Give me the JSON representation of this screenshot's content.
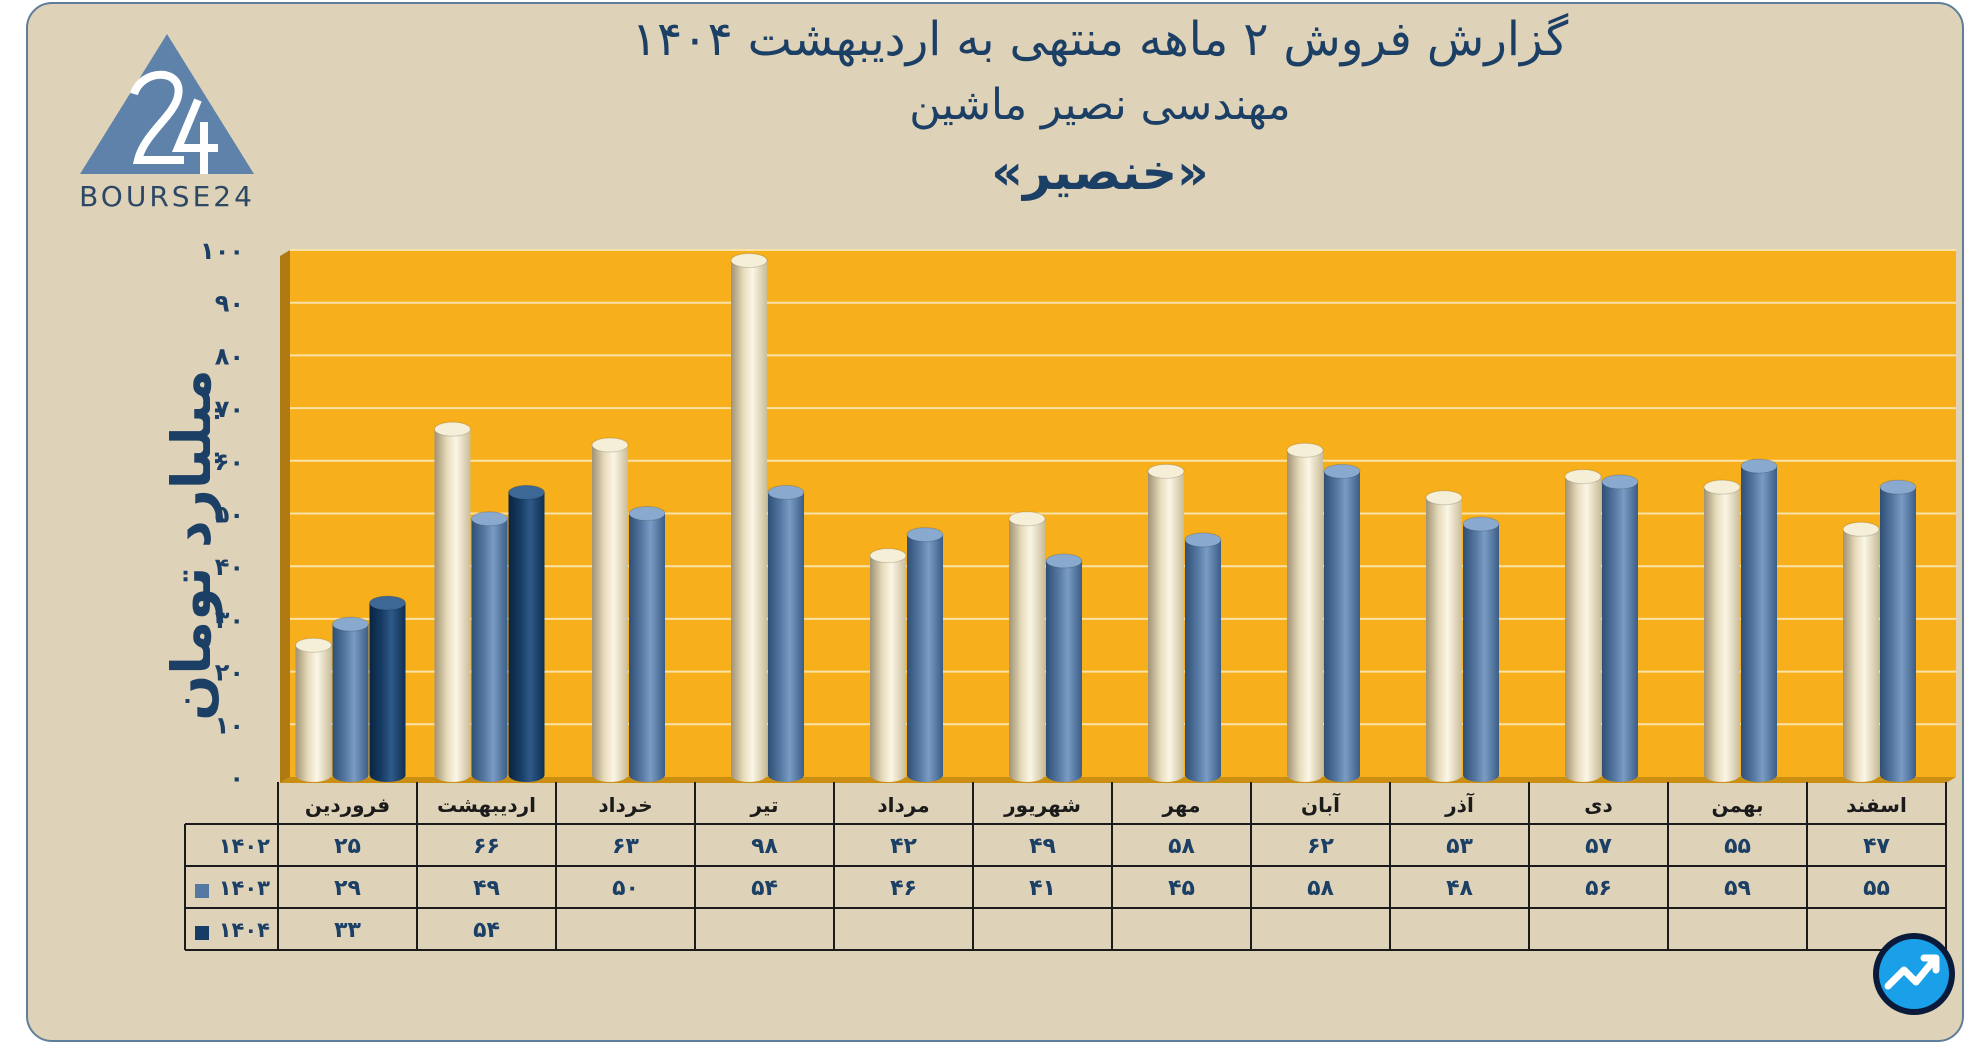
{
  "title": {
    "line1": "گزارش  فروش ۲ ماهه منتهی به اردیبهشت ۱۴۰۴",
    "line2": "مهندسی نصیر ماشین",
    "line3": "«خنصیر»"
  },
  "logo": {
    "text": "BOURSE24",
    "icon": "bourse24-logo"
  },
  "badge": {
    "icon": "trend-arrow-badge-icon"
  },
  "colors": {
    "plot_bg": "#f7b01c",
    "frame_bg": "#ded3b8",
    "series_1402": "#e7dcbc",
    "series_1403": "#5578a2",
    "series_1404": "#163d66",
    "text": "#1c3f66"
  },
  "chart_data": {
    "type": "bar",
    "ylabel": "میلیارد تومان",
    "ylim": [
      0,
      100
    ],
    "yticks": [
      "۰",
      "۱۰",
      "۲۰",
      "۳۰",
      "۴۰",
      "۵۰",
      "۶۰",
      "۷۰",
      "۸۰",
      "۹۰",
      "۱۰۰"
    ],
    "grid": true,
    "categories": [
      "فروردین",
      "اردیبهشت",
      "خرداد",
      "تیر",
      "مرداد",
      "شهریور",
      "مهر",
      "آبان",
      "آذر",
      "دی",
      "بهمن",
      "اسفند"
    ],
    "series": [
      {
        "name": "۱۴۰۲",
        "values": [
          25,
          66,
          63,
          98,
          42,
          49,
          58,
          62,
          53,
          57,
          55,
          47
        ],
        "labels": [
          "۲۵",
          "۶۶",
          "۶۳",
          "۹۸",
          "۴۲",
          "۴۹",
          "۵۸",
          "۶۲",
          "۵۳",
          "۵۷",
          "۵۵",
          "۴۷"
        ]
      },
      {
        "name": "۱۴۰۳",
        "values": [
          29,
          49,
          50,
          54,
          46,
          41,
          45,
          58,
          48,
          56,
          59,
          55
        ],
        "labels": [
          "۲۹",
          "۴۹",
          "۵۰",
          "۵۴",
          "۴۶",
          "۴۱",
          "۴۵",
          "۵۸",
          "۴۸",
          "۵۶",
          "۵۹",
          "۵۵"
        ]
      },
      {
        "name": "۱۴۰۴",
        "values": [
          33,
          54,
          null,
          null,
          null,
          null,
          null,
          null,
          null,
          null,
          null,
          null
        ],
        "labels": [
          "۳۳",
          "۵۴",
          "",
          "",
          "",
          "",
          "",
          "",
          "",
          "",
          "",
          ""
        ]
      }
    ]
  }
}
